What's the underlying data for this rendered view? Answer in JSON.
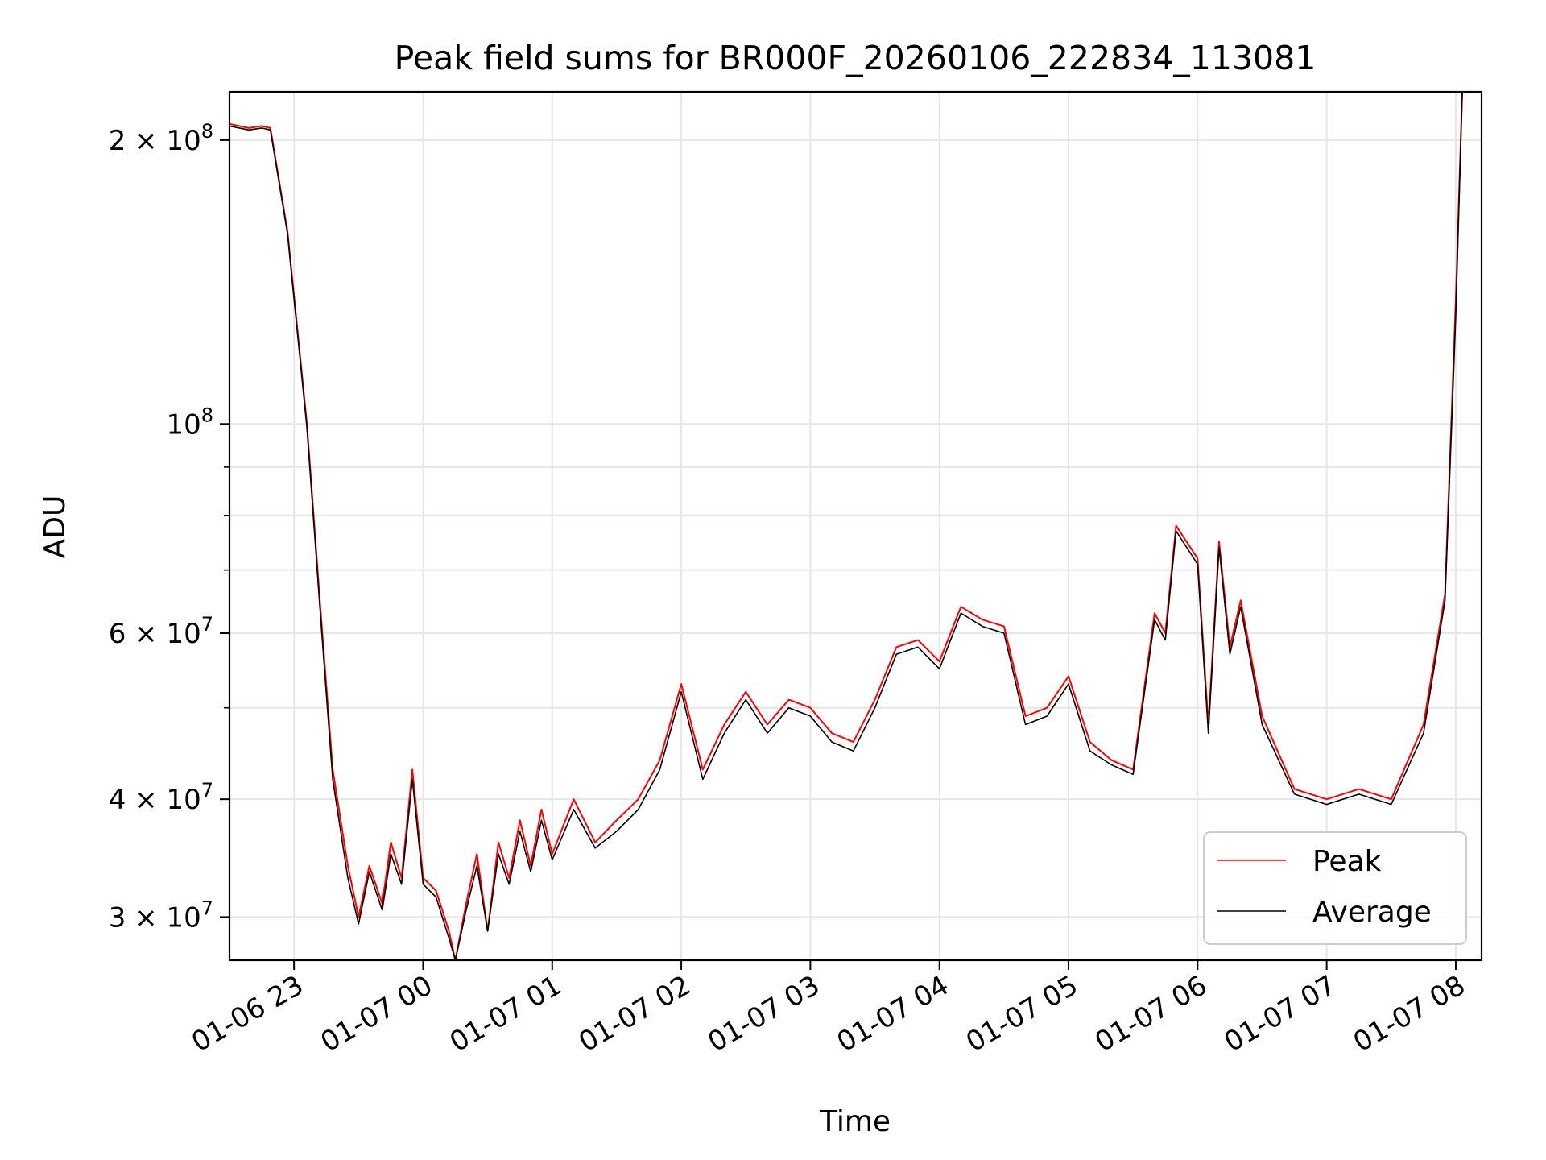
{
  "chart_data": {
    "type": "line",
    "title": "Peak field sums for BR000F_20260106_222834_113081",
    "xlabel": "Time",
    "ylabel": "ADU",
    "x_scale": "time",
    "y_scale": "log",
    "xlim": [
      "2026-01-06 22:30",
      "2026-01-07 08:12"
    ],
    "ylim": [
      27000000,
      225000000
    ],
    "grid": true,
    "legend_position": "lower-right",
    "x_ticks": [
      {
        "value": "2026-01-06 23:00",
        "label": "01-06 23"
      },
      {
        "value": "2026-01-07 00:00",
        "label": "01-07 00"
      },
      {
        "value": "2026-01-07 01:00",
        "label": "01-07 01"
      },
      {
        "value": "2026-01-07 02:00",
        "label": "01-07 02"
      },
      {
        "value": "2026-01-07 03:00",
        "label": "01-07 03"
      },
      {
        "value": "2026-01-07 04:00",
        "label": "01-07 04"
      },
      {
        "value": "2026-01-07 05:00",
        "label": "01-07 05"
      },
      {
        "value": "2026-01-07 06:00",
        "label": "01-07 06"
      },
      {
        "value": "2026-01-07 07:00",
        "label": "01-07 07"
      },
      {
        "value": "2026-01-07 08:00",
        "label": "01-07 08"
      }
    ],
    "y_ticks": [
      {
        "value": 30000000,
        "mant": "3",
        "exp": "7"
      },
      {
        "value": 40000000,
        "mant": "4",
        "exp": "7"
      },
      {
        "value": 60000000,
        "mant": "6",
        "exp": "7"
      },
      {
        "value": 100000000,
        "mant": "",
        "exp": "8"
      },
      {
        "value": 200000000,
        "mant": "2",
        "exp": "8"
      }
    ],
    "y_minor_ticks": [
      50000000,
      70000000,
      80000000,
      90000000
    ],
    "series": [
      {
        "name": "Peak",
        "color": "#ff0000",
        "x": [
          "2026-01-06 22:30",
          "2026-01-06 22:39",
          "2026-01-06 22:45",
          "2026-01-06 22:49",
          "2026-01-06 22:57",
          "2026-01-06 23:06",
          "2026-01-06 23:12",
          "2026-01-06 23:18",
          "2026-01-06 23:25",
          "2026-01-06 23:30",
          "2026-01-06 23:35",
          "2026-01-06 23:41",
          "2026-01-06 23:45",
          "2026-01-06 23:50",
          "2026-01-06 23:55",
          "2026-01-07 00:00",
          "2026-01-07 00:06",
          "2026-01-07 00:12",
          "2026-01-07 00:15",
          "2026-01-07 00:20",
          "2026-01-07 00:25",
          "2026-01-07 00:30",
          "2026-01-07 00:35",
          "2026-01-07 00:40",
          "2026-01-07 00:45",
          "2026-01-07 00:50",
          "2026-01-07 00:55",
          "2026-01-07 01:00",
          "2026-01-07 01:10",
          "2026-01-07 01:20",
          "2026-01-07 01:30",
          "2026-01-07 01:40",
          "2026-01-07 01:50",
          "2026-01-07 02:00",
          "2026-01-07 02:10",
          "2026-01-07 02:20",
          "2026-01-07 02:30",
          "2026-01-07 02:40",
          "2026-01-07 02:50",
          "2026-01-07 03:00",
          "2026-01-07 03:10",
          "2026-01-07 03:20",
          "2026-01-07 03:30",
          "2026-01-07 03:40",
          "2026-01-07 03:50",
          "2026-01-07 04:00",
          "2026-01-07 04:10",
          "2026-01-07 04:20",
          "2026-01-07 04:30",
          "2026-01-07 04:40",
          "2026-01-07 04:50",
          "2026-01-07 05:00",
          "2026-01-07 05:10",
          "2026-01-07 05:20",
          "2026-01-07 05:30",
          "2026-01-07 05:40",
          "2026-01-07 05:45",
          "2026-01-07 05:50",
          "2026-01-07 06:00",
          "2026-01-07 06:05",
          "2026-01-07 06:10",
          "2026-01-07 06:15",
          "2026-01-07 06:20",
          "2026-01-07 06:30",
          "2026-01-07 06:45",
          "2026-01-07 07:00",
          "2026-01-07 07:15",
          "2026-01-07 07:30",
          "2026-01-07 07:45",
          "2026-01-07 07:55",
          "2026-01-07 08:00",
          "2026-01-07 08:03"
        ],
        "values": [
          208000000,
          206000000,
          207000000,
          206000000,
          160000000,
          100000000,
          65000000,
          43000000,
          34000000,
          30000000,
          34000000,
          31000000,
          36000000,
          33000000,
          43000000,
          33000000,
          32000000,
          29000000,
          27000000,
          31000000,
          35000000,
          29000000,
          36000000,
          33000000,
          38000000,
          34000000,
          39000000,
          35000000,
          40000000,
          36000000,
          38000000,
          40000000,
          44000000,
          53000000,
          43000000,
          48000000,
          52000000,
          48000000,
          51000000,
          50000000,
          47000000,
          46000000,
          51000000,
          58000000,
          59000000,
          56000000,
          64000000,
          62000000,
          61000000,
          49000000,
          50000000,
          54000000,
          46000000,
          44000000,
          43000000,
          63000000,
          60000000,
          78000000,
          72000000,
          48000000,
          75000000,
          58000000,
          65000000,
          49000000,
          41000000,
          40000000,
          41000000,
          40000000,
          48000000,
          66000000,
          135000000,
          225000000
        ]
      },
      {
        "name": "Average",
        "color": "#000000",
        "x": [
          "2026-01-06 22:30",
          "2026-01-06 22:39",
          "2026-01-06 22:45",
          "2026-01-06 22:49",
          "2026-01-06 22:57",
          "2026-01-06 23:06",
          "2026-01-06 23:12",
          "2026-01-06 23:18",
          "2026-01-06 23:25",
          "2026-01-06 23:30",
          "2026-01-06 23:35",
          "2026-01-06 23:41",
          "2026-01-06 23:45",
          "2026-01-06 23:50",
          "2026-01-06 23:55",
          "2026-01-07 00:00",
          "2026-01-07 00:06",
          "2026-01-07 00:12",
          "2026-01-07 00:15",
          "2026-01-07 00:20",
          "2026-01-07 00:25",
          "2026-01-07 00:30",
          "2026-01-07 00:35",
          "2026-01-07 00:40",
          "2026-01-07 00:45",
          "2026-01-07 00:50",
          "2026-01-07 00:55",
          "2026-01-07 01:00",
          "2026-01-07 01:10",
          "2026-01-07 01:20",
          "2026-01-07 01:30",
          "2026-01-07 01:40",
          "2026-01-07 01:50",
          "2026-01-07 02:00",
          "2026-01-07 02:10",
          "2026-01-07 02:20",
          "2026-01-07 02:30",
          "2026-01-07 02:40",
          "2026-01-07 02:50",
          "2026-01-07 03:00",
          "2026-01-07 03:10",
          "2026-01-07 03:20",
          "2026-01-07 03:30",
          "2026-01-07 03:40",
          "2026-01-07 03:50",
          "2026-01-07 04:00",
          "2026-01-07 04:10",
          "2026-01-07 04:20",
          "2026-01-07 04:30",
          "2026-01-07 04:40",
          "2026-01-07 04:50",
          "2026-01-07 05:00",
          "2026-01-07 05:10",
          "2026-01-07 05:20",
          "2026-01-07 05:30",
          "2026-01-07 05:40",
          "2026-01-07 05:45",
          "2026-01-07 05:50",
          "2026-01-07 06:00",
          "2026-01-07 06:05",
          "2026-01-07 06:10",
          "2026-01-07 06:15",
          "2026-01-07 06:20",
          "2026-01-07 06:30",
          "2026-01-07 06:45",
          "2026-01-07 07:00",
          "2026-01-07 07:15",
          "2026-01-07 07:30",
          "2026-01-07 07:45",
          "2026-01-07 07:55",
          "2026-01-07 08:00",
          "2026-01-07 08:03"
        ],
        "values": [
          207000000,
          205000000,
          206000000,
          205000000,
          159000000,
          99000000,
          64000000,
          42000000,
          33000000,
          29500000,
          33500000,
          30500000,
          35000000,
          32500000,
          42000000,
          32500000,
          31500000,
          28500000,
          27000000,
          30500000,
          34000000,
          29000000,
          35000000,
          32500000,
          37000000,
          33500000,
          38000000,
          34500000,
          39000000,
          35500000,
          37000000,
          39000000,
          43000000,
          52000000,
          42000000,
          47000000,
          51000000,
          47000000,
          50000000,
          49000000,
          46000000,
          45000000,
          50000000,
          57000000,
          58000000,
          55000000,
          63000000,
          61000000,
          60000000,
          48000000,
          49000000,
          53000000,
          45000000,
          43500000,
          42500000,
          62000000,
          59000000,
          77000000,
          71000000,
          47000000,
          74000000,
          57000000,
          64000000,
          48000000,
          40500000,
          39500000,
          40500000,
          39500000,
          47000000,
          65000000,
          130000000,
          225000000
        ]
      }
    ]
  }
}
